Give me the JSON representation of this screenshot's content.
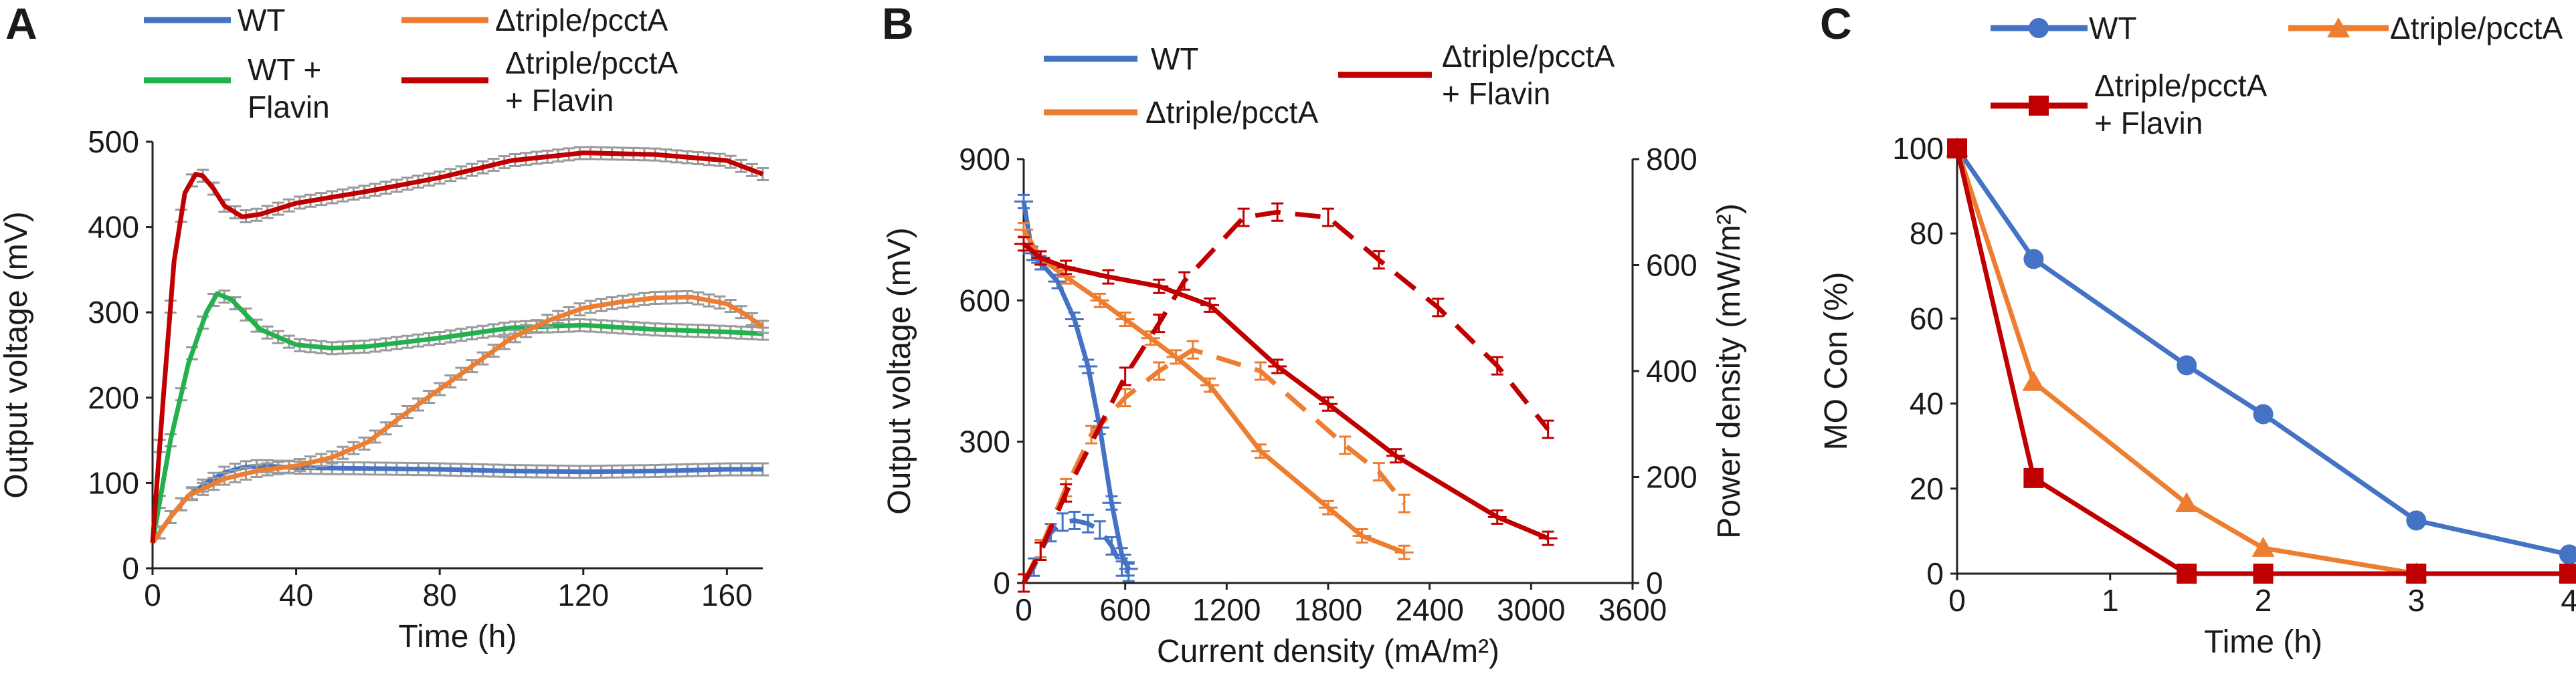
{
  "colors": {
    "WT": "#4472C4",
    "WTF": "#22B14C",
    "DT": "#ED7D31",
    "DTF": "#C00000"
  },
  "chart_data": [
    {
      "panel": "A",
      "type": "line",
      "xlabel": "Time (h)",
      "ylabel": "Output voltage (mV)",
      "xlim": [
        0,
        170
      ],
      "ylim": [
        0,
        500
      ],
      "xticks": [
        "0",
        "40",
        "80",
        "120",
        "160"
      ],
      "yticks": [
        "0",
        "100",
        "200",
        "300",
        "400",
        "500"
      ],
      "legend": [
        {
          "key": "WT",
          "label": "WT"
        },
        {
          "key": "DT",
          "label_lines": [
            "Δtriple/pcctA"
          ]
        },
        {
          "key": "WTF",
          "label_lines": [
            "WT +",
            "Flavin"
          ]
        },
        {
          "key": "DTF",
          "label_lines": [
            "Δtriple/pcctA",
            "+ Flavin"
          ]
        }
      ],
      "series": [
        {
          "name": "WT",
          "key": "WT",
          "x": [
            0,
            5,
            10,
            15,
            20,
            25,
            30,
            40,
            60,
            80,
            100,
            120,
            140,
            160,
            170
          ],
          "y": [
            30,
            60,
            85,
            100,
            112,
            118,
            120,
            118,
            117,
            116,
            114,
            113,
            114,
            116,
            116
          ]
        },
        {
          "name": "WT + Flavin",
          "key": "WTF",
          "x": [
            0,
            5,
            10,
            15,
            18,
            22,
            30,
            40,
            50,
            60,
            80,
            100,
            120,
            140,
            160,
            170
          ],
          "y": [
            30,
            150,
            240,
            300,
            322,
            315,
            280,
            262,
            258,
            260,
            270,
            282,
            285,
            280,
            277,
            275
          ]
        },
        {
          "name": "Δtriple/pcctA",
          "key": "DT",
          "x": [
            0,
            5,
            10,
            20,
            30,
            40,
            50,
            60,
            70,
            80,
            90,
            100,
            110,
            120,
            130,
            140,
            150,
            160,
            165,
            170
          ],
          "y": [
            30,
            60,
            85,
            105,
            115,
            120,
            130,
            148,
            180,
            210,
            240,
            270,
            290,
            305,
            312,
            317,
            318,
            310,
            298,
            283
          ]
        },
        {
          "name": "Δtriple/pcctA + Flavin",
          "key": "DTF",
          "x": [
            0,
            3,
            6,
            9,
            12,
            14,
            17,
            20,
            25,
            30,
            40,
            60,
            80,
            100,
            120,
            140,
            160,
            170
          ],
          "y": [
            30,
            200,
            360,
            440,
            462,
            460,
            445,
            425,
            412,
            415,
            428,
            442,
            458,
            478,
            487,
            485,
            478,
            462
          ]
        }
      ]
    },
    {
      "panel": "B",
      "type": "line",
      "xlabel": "Current density (mA/m²)",
      "ylabel": "Output voltage (mV)",
      "y2label": "Power density (mW/m²)",
      "xlim": [
        0,
        3600
      ],
      "ylim": [
        0,
        900
      ],
      "y2lim": [
        0,
        800
      ],
      "xticks": [
        "0",
        "600",
        "1200",
        "1800",
        "2400",
        "3000",
        "3600"
      ],
      "yticks": [
        "0",
        "300",
        "600",
        "900"
      ],
      "y2ticks": [
        "0",
        "200",
        "400",
        "600",
        "800"
      ],
      "legend": [
        {
          "key": "WT",
          "label": "WT"
        },
        {
          "key": "DT",
          "label": "Δtriple/pcctA"
        },
        {
          "key": "DTF",
          "label_lines": [
            "Δtriple/pcctA",
            "+ Flavin"
          ]
        }
      ],
      "voltage_series": [
        {
          "name": "WT",
          "key": "WT",
          "x": [
            0,
            50,
            100,
            200,
            300,
            380,
            450,
            520,
            580,
            620
          ],
          "y": [
            810,
            700,
            680,
            640,
            560,
            460,
            330,
            170,
            60,
            30
          ]
        },
        {
          "name": "Δtriple/pcctA",
          "key": "DT",
          "x": [
            0,
            100,
            250,
            450,
            600,
            750,
            900,
            1100,
            1400,
            1800,
            2000,
            2250
          ],
          "y": [
            750,
            690,
            650,
            600,
            560,
            520,
            480,
            420,
            280,
            160,
            100,
            65
          ]
        },
        {
          "name": "Δtriple/pcctA + Flavin",
          "key": "DTF",
          "x": [
            0,
            100,
            250,
            500,
            800,
            1100,
            1500,
            1800,
            2200,
            2800,
            3100
          ],
          "y": [
            720,
            690,
            670,
            650,
            630,
            590,
            460,
            380,
            270,
            140,
            95
          ]
        }
      ],
      "power_series": [
        {
          "name": "WT",
          "key": "WT",
          "x": [
            0,
            60,
            100,
            160,
            230,
            300,
            380,
            450,
            520,
            580,
            620
          ],
          "y": [
            0,
            30,
            60,
            95,
            115,
            118,
            112,
            100,
            70,
            30,
            20
          ]
        },
        {
          "name": "Δtriple/pcctA",
          "key": "DT",
          "x": [
            0,
            100,
            250,
            400,
            600,
            800,
            1000,
            1400,
            1900,
            2100,
            2250
          ],
          "y": [
            0,
            65,
            180,
            280,
            350,
            400,
            440,
            400,
            260,
            210,
            150
          ]
        },
        {
          "name": "Δtriple/pcctA + Flavin",
          "key": "DTF",
          "x": [
            0,
            100,
            250,
            600,
            800,
            950,
            1300,
            1500,
            1800,
            2100,
            2450,
            2800,
            3100
          ],
          "y": [
            0,
            60,
            170,
            390,
            490,
            570,
            690,
            700,
            690,
            610,
            520,
            410,
            290
          ]
        }
      ]
    },
    {
      "panel": "C",
      "type": "line",
      "xlabel": "Time (h)",
      "ylabel": "MO Con (%)",
      "xlim": [
        0,
        4
      ],
      "ylim": [
        0,
        100
      ],
      "xticks": [
        "0",
        "1",
        "2",
        "3",
        "4"
      ],
      "yticks": [
        "0",
        "20",
        "40",
        "60",
        "80",
        "100"
      ],
      "legend": [
        {
          "key": "WT",
          "label": "WT",
          "marker": "circle"
        },
        {
          "key": "DT",
          "label": "Δtriple/pcctA",
          "marker": "triangle"
        },
        {
          "key": "DTF",
          "label_lines": [
            "Δtriple/pcctA",
            "+ Flavin"
          ],
          "marker": "square"
        }
      ],
      "series": [
        {
          "name": "WT",
          "key": "WT",
          "marker": "circle",
          "x": [
            0,
            0.5,
            1.5,
            2,
            3,
            4
          ],
          "y": [
            100,
            74,
            49,
            37.5,
            12.5,
            4.5
          ]
        },
        {
          "name": "Δtriple/pcctA",
          "key": "DT",
          "marker": "triangle",
          "x": [
            0,
            0.5,
            1.5,
            2,
            3,
            4
          ],
          "y": [
            100,
            45,
            16.5,
            6,
            0,
            0
          ]
        },
        {
          "name": "Δtriple/pcctA + Flavin",
          "key": "DTF",
          "marker": "square",
          "x": [
            0,
            0.5,
            1.5,
            2,
            3,
            4
          ],
          "y": [
            100,
            22.5,
            0,
            0,
            0,
            0
          ]
        }
      ]
    }
  ]
}
